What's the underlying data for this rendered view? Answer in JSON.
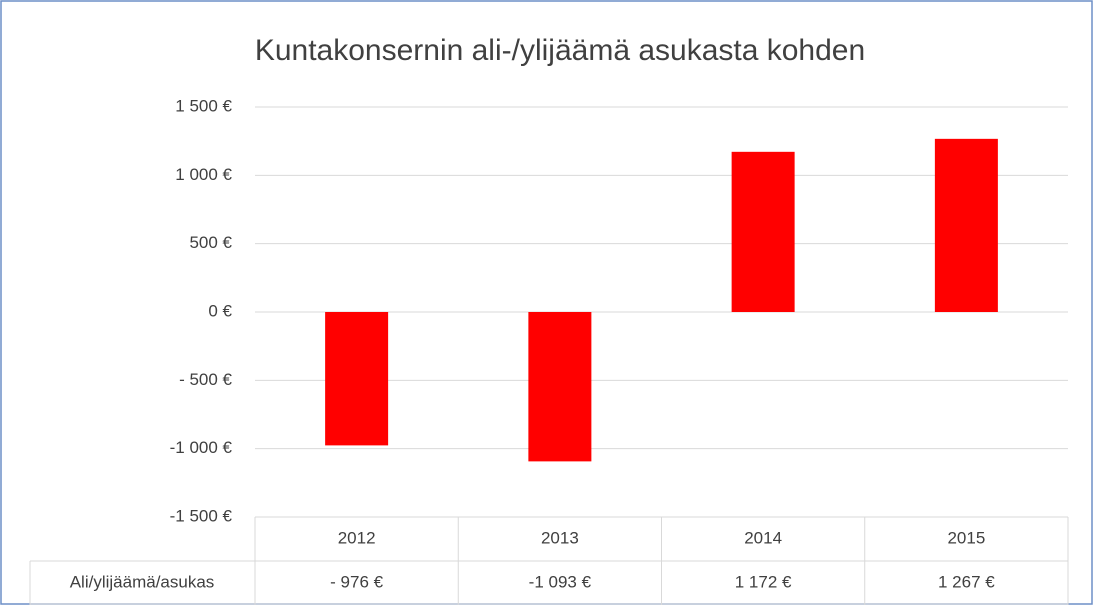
{
  "chart_data": {
    "type": "bar",
    "title": "Kuntakonsernin ali-/ylijäämä asukasta kohden",
    "categories": [
      "2012",
      "2013",
      "2014",
      "2015"
    ],
    "series": [
      {
        "name": "Ali/ylijäämä/asukas",
        "color": "#ff0000",
        "values": [
          -976,
          -1093,
          1172,
          1267
        ],
        "value_labels": [
          "- 976 €",
          "-1 093 €",
          "1 172 €",
          "1 267 €"
        ]
      }
    ],
    "ylim": [
      -1500,
      1500
    ],
    "yticks": [
      {
        "value": -1500,
        "label": "-1 500 €"
      },
      {
        "value": -1000,
        "label": "-1 000 €"
      },
      {
        "value": -500,
        "label": "- 500 €"
      },
      {
        "value": 0,
        "label": "0 €"
      },
      {
        "value": 500,
        "label": "500 €"
      },
      {
        "value": 1000,
        "label": "1 000 €"
      },
      {
        "value": 1500,
        "label": "1 500 €"
      }
    ],
    "grid": true
  }
}
